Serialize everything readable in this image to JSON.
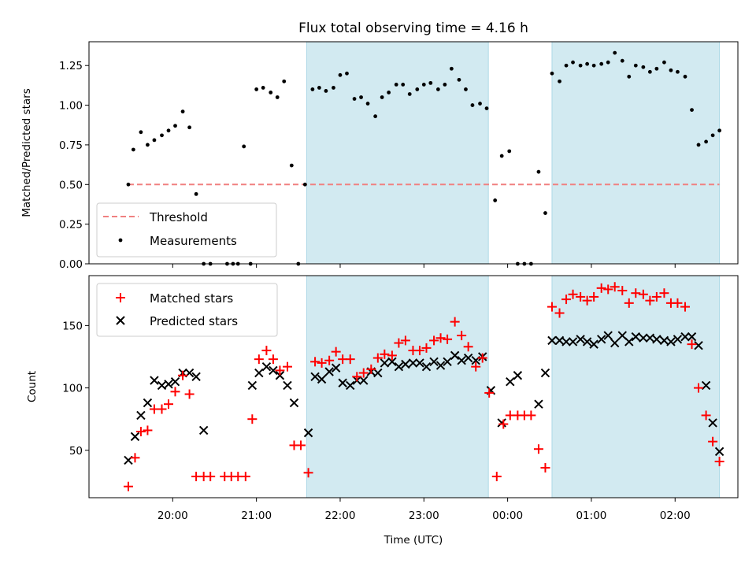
{
  "chart_data": [
    {
      "type": "scatter",
      "title": "Flux total observing time = 4.16 h",
      "xlabel": "",
      "ylabel": "Matched/Predicted stars",
      "xlim_hours": [
        19.0,
        26.75
      ],
      "ylim": [
        0,
        1.4
      ],
      "yticks": [
        "0.00",
        "0.25",
        "0.50",
        "0.75",
        "1.00",
        "1.25"
      ],
      "threshold": 0.5,
      "shaded_intervals": [
        [
          21.6,
          23.77
        ],
        [
          24.53,
          26.53
        ]
      ],
      "legend": {
        "position": "lower-left",
        "entries": [
          "Threshold",
          "Measurements"
        ]
      },
      "threshold_color": "#f08080",
      "shade_color": "#add8e6",
      "series": [
        {
          "name": "Measurements",
          "x": [
            19.47,
            19.53,
            19.62,
            19.7,
            19.78,
            19.87,
            19.95,
            20.03,
            20.12,
            20.2,
            20.28,
            20.37,
            20.45,
            20.65,
            20.72,
            20.78,
            20.85,
            20.93,
            21.0,
            21.08,
            21.17,
            21.25,
            21.33,
            21.42,
            21.5,
            21.58,
            21.67,
            21.75,
            21.83,
            21.92,
            22.0,
            22.08,
            22.17,
            22.25,
            22.33,
            22.42,
            22.5,
            22.58,
            22.67,
            22.75,
            22.83,
            22.92,
            23.0,
            23.08,
            23.17,
            23.25,
            23.33,
            23.42,
            23.5,
            23.58,
            23.67,
            23.75,
            23.85,
            23.93,
            24.02,
            24.12,
            24.2,
            24.28,
            24.37,
            24.45,
            24.53,
            24.62,
            24.7,
            24.78,
            24.87,
            24.95,
            25.03,
            25.12,
            25.2,
            25.28,
            25.37,
            25.45,
            25.53,
            25.62,
            25.7,
            25.78,
            25.87,
            25.95,
            26.03,
            26.12,
            26.2,
            26.28,
            26.37,
            26.45,
            26.53
          ],
          "y": [
            0.5,
            0.72,
            0.83,
            0.75,
            0.78,
            0.81,
            0.84,
            0.87,
            0.96,
            0.86,
            0.44,
            0.0,
            0.0,
            0.0,
            0.0,
            0.0,
            0.74,
            0.0,
            1.1,
            1.11,
            1.08,
            1.05,
            1.15,
            0.62,
            0.0,
            0.5,
            1.1,
            1.11,
            1.09,
            1.11,
            1.19,
            1.2,
            1.04,
            1.05,
            1.01,
            0.93,
            1.05,
            1.08,
            1.13,
            1.13,
            1.07,
            1.1,
            1.13,
            1.14,
            1.1,
            1.13,
            1.23,
            1.16,
            1.1,
            1.0,
            1.01,
            0.98,
            0.4,
            0.68,
            0.71,
            0.0,
            0.0,
            0.0,
            0.58,
            0.32,
            1.2,
            1.15,
            1.25,
            1.27,
            1.25,
            1.26,
            1.25,
            1.26,
            1.27,
            1.33,
            1.28,
            1.18,
            1.25,
            1.24,
            1.21,
            1.23,
            1.27,
            1.22,
            1.21,
            1.18,
            0.97,
            0.75,
            0.77,
            0.81,
            0.84
          ]
        }
      ]
    },
    {
      "type": "scatter",
      "title": "",
      "xlabel": "Time (UTC)",
      "ylabel": "Count",
      "xlim_hours": [
        19.0,
        26.75
      ],
      "ylim": [
        12,
        190
      ],
      "yticks": [
        "50",
        "100",
        "150"
      ],
      "xticks": [
        "20:00",
        "21:00",
        "22:00",
        "23:00",
        "00:00",
        "01:00",
        "02:00"
      ],
      "shaded_intervals": [
        [
          21.6,
          23.77
        ],
        [
          24.53,
          26.53
        ]
      ],
      "legend": {
        "position": "upper-left",
        "entries": [
          "Matched stars",
          "Predicted stars"
        ]
      },
      "matched_color": "#ff0000",
      "predicted_color": "#000000",
      "shade_color": "#add8e6",
      "series": [
        {
          "name": "Matched stars",
          "x": [
            19.47,
            19.55,
            19.62,
            19.7,
            19.78,
            19.87,
            19.95,
            20.03,
            20.12,
            20.2,
            20.28,
            20.37,
            20.45,
            20.62,
            20.7,
            20.78,
            20.87,
            20.95,
            21.03,
            21.12,
            21.2,
            21.28,
            21.37,
            21.45,
            21.53,
            21.62,
            21.7,
            21.78,
            21.87,
            21.95,
            22.03,
            22.12,
            22.2,
            22.28,
            22.37,
            22.45,
            22.53,
            22.62,
            22.7,
            22.78,
            22.87,
            22.95,
            23.03,
            23.12,
            23.2,
            23.28,
            23.37,
            23.45,
            23.53,
            23.62,
            23.7,
            23.78,
            23.87,
            23.95,
            24.03,
            24.12,
            24.2,
            24.28,
            24.37,
            24.45,
            24.53,
            24.62,
            24.7,
            24.78,
            24.87,
            24.95,
            25.03,
            25.12,
            25.2,
            25.28,
            25.37,
            25.45,
            25.53,
            25.62,
            25.7,
            25.78,
            25.87,
            25.95,
            26.03,
            26.12,
            26.2,
            26.28,
            26.37,
            26.45,
            26.53
          ],
          "y": [
            21,
            44,
            65,
            66,
            83,
            83,
            87,
            97,
            110,
            95,
            29,
            29,
            29,
            29,
            29,
            29,
            29,
            75,
            123,
            130,
            123,
            114,
            117,
            54,
            54,
            32,
            121,
            120,
            122,
            129,
            123,
            123,
            109,
            112,
            115,
            124,
            127,
            126,
            136,
            138,
            130,
            130,
            132,
            138,
            140,
            139,
            153,
            142,
            133,
            117,
            124,
            96,
            29,
            71,
            78,
            78,
            78,
            78,
            51,
            36,
            165,
            160,
            171,
            175,
            173,
            170,
            173,
            180,
            179,
            181,
            178,
            168,
            176,
            175,
            170,
            173,
            176,
            168,
            168,
            165,
            135,
            100,
            78,
            57,
            41
          ]
        },
        {
          "name": "Predicted stars",
          "x": [
            19.47,
            19.55,
            19.62,
            19.7,
            19.78,
            19.87,
            19.95,
            20.03,
            20.12,
            20.2,
            20.28,
            20.37,
            20.95,
            21.03,
            21.12,
            21.2,
            21.28,
            21.37,
            21.45,
            21.62,
            21.7,
            21.78,
            21.87,
            21.95,
            22.03,
            22.12,
            22.2,
            22.28,
            22.37,
            22.45,
            22.53,
            22.62,
            22.7,
            22.78,
            22.87,
            22.95,
            23.03,
            23.12,
            23.2,
            23.28,
            23.37,
            23.45,
            23.53,
            23.62,
            23.7,
            23.8,
            23.93,
            24.03,
            24.12,
            24.37,
            24.45,
            24.53,
            24.62,
            24.7,
            24.78,
            24.87,
            24.95,
            25.03,
            25.12,
            25.2,
            25.28,
            25.37,
            25.45,
            25.53,
            25.62,
            25.7,
            25.78,
            25.87,
            25.95,
            26.03,
            26.12,
            26.2,
            26.28,
            26.37,
            26.45,
            26.53
          ],
          "y": [
            42,
            61,
            78,
            88,
            106,
            102,
            103,
            105,
            112,
            112,
            109,
            66,
            102,
            112,
            117,
            114,
            110,
            102,
            88,
            64,
            109,
            107,
            113,
            116,
            104,
            102,
            106,
            106,
            113,
            112,
            120,
            121,
            117,
            119,
            120,
            120,
            117,
            121,
            118,
            121,
            126,
            122,
            124,
            122,
            125,
            98,
            72,
            105,
            110,
            87,
            112,
            138,
            138,
            137,
            137,
            139,
            137,
            135,
            139,
            142,
            136,
            142,
            137,
            141,
            140,
            140,
            139,
            138,
            137,
            139,
            141,
            141,
            134,
            102,
            72,
            49
          ]
        }
      ]
    }
  ]
}
